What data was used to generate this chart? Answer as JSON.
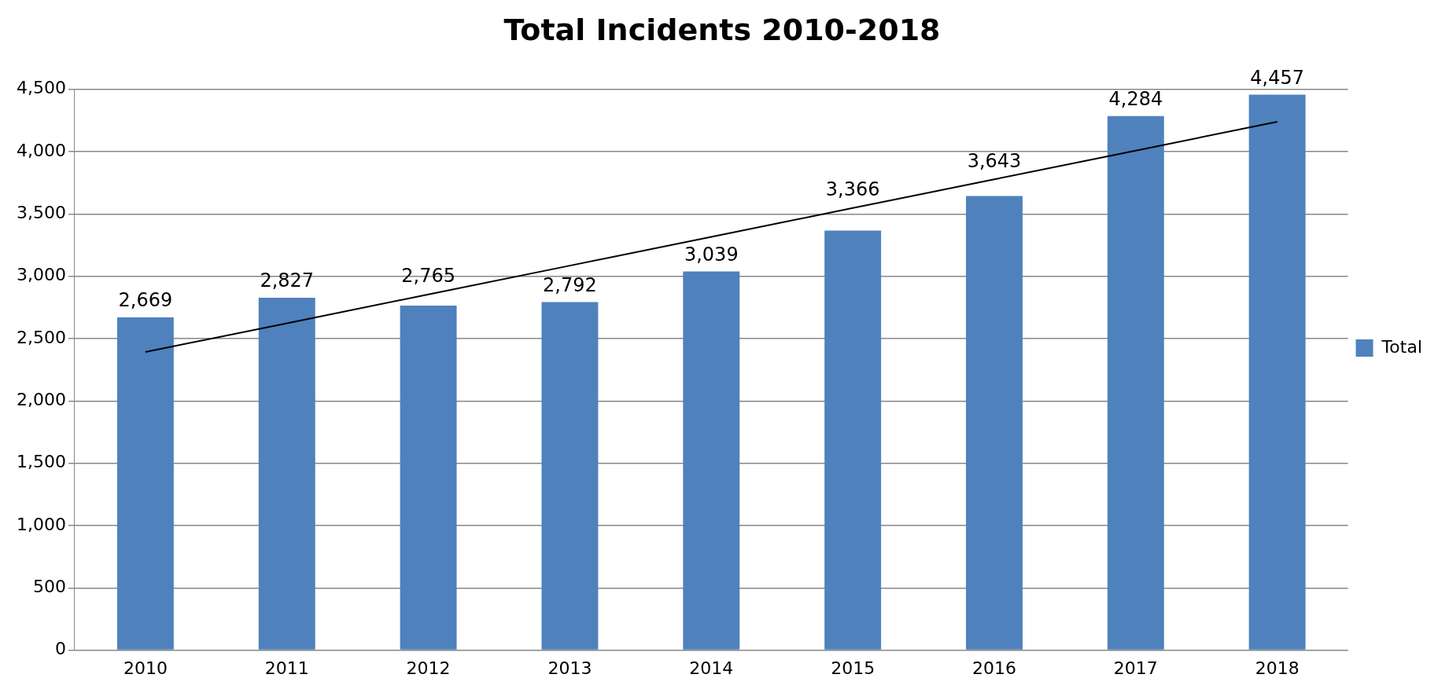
{
  "chart_data": {
    "type": "bar",
    "title": "Total Incidents 2010-2018",
    "categories": [
      "2010",
      "2011",
      "2012",
      "2013",
      "2014",
      "2015",
      "2016",
      "2017",
      "2018"
    ],
    "series": [
      {
        "name": "Total",
        "color": "#4f81bd",
        "values": [
          2669,
          2827,
          2765,
          2792,
          3039,
          3366,
          3643,
          4284,
          4457
        ],
        "value_labels": [
          "2,669",
          "2,827",
          "2,765",
          "2,792",
          "3,039",
          "3,366",
          "3,643",
          "4,284",
          "4,457"
        ]
      },
      {
        "type": "line",
        "color": "#000000",
        "values": [
          2392,
          2623,
          2854,
          3085,
          3316,
          3547,
          3777,
          4008,
          4239
        ]
      }
    ],
    "ylim": [
      0,
      4500
    ],
    "yticks": [
      0,
      500,
      {
        "value": 1000,
        "label": "1,000"
      },
      {
        "value": 1500,
        "label": "1,500"
      },
      {
        "value": 2000,
        "label": "2,000"
      },
      {
        "value": 2500,
        "label": "2,500"
      },
      {
        "value": 3000,
        "label": "3,000"
      },
      {
        "value": 3500,
        "label": "3,500"
      },
      {
        "value": 4000,
        "label": "4,000"
      },
      {
        "value": 4500,
        "label": "4,500"
      }
    ],
    "grid": "y",
    "legend": "right",
    "marker": "none",
    "line_style": "solid"
  }
}
